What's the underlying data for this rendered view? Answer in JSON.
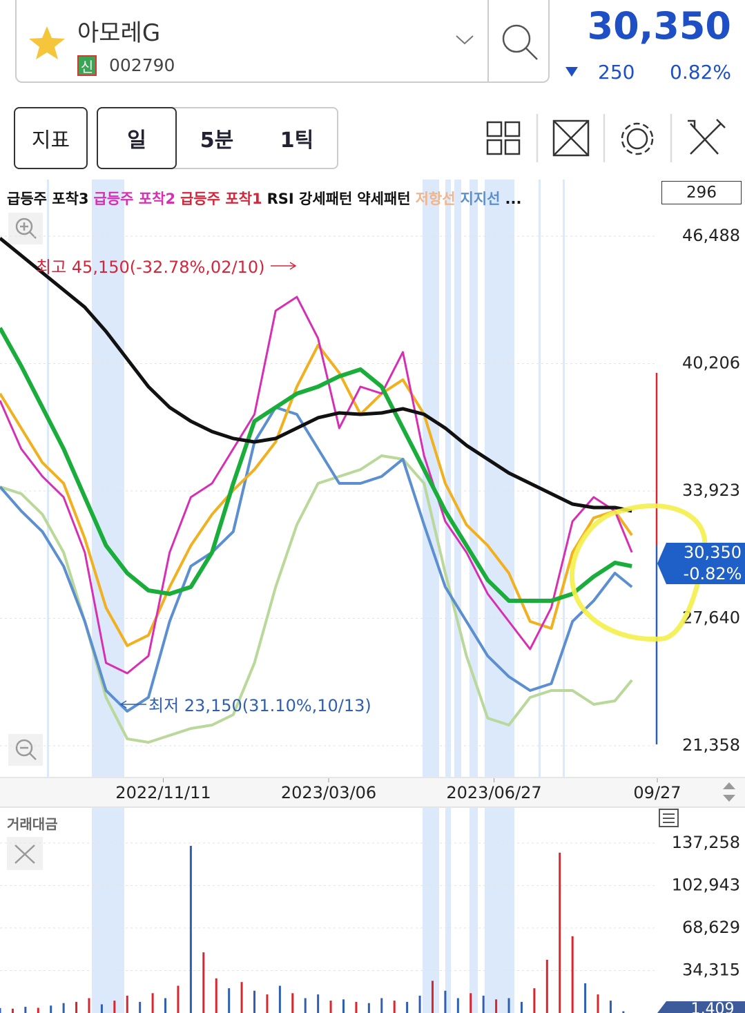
{
  "header": {
    "name": "아모레G",
    "badge": "신",
    "code": "002790",
    "price": "30,350",
    "change": "250",
    "change_pct": "0.82%"
  },
  "toolbar": {
    "buttons": [
      "지표",
      "일",
      "5분",
      "1틱"
    ]
  },
  "legend": [
    {
      "text": "급등주 포착3",
      "color": "#111111"
    },
    {
      "text": "급등주 포착2",
      "color": "#d62fb4"
    },
    {
      "text": "급등주 포착1",
      "color": "#d4263b"
    },
    {
      "text": "RSI 강세패턴",
      "color": "#111111"
    },
    {
      "text": "약세패턴",
      "color": "#111111"
    },
    {
      "text": "저항선",
      "color": "#f2b48a"
    },
    {
      "text": "지지선",
      "color": "#5b8fd0"
    },
    {
      "text": "...",
      "color": "#111111"
    }
  ],
  "counter": "296",
  "chart_data": [
    {
      "type": "line",
      "xlim": [
        0,
        310
      ],
      "xticks": [
        {
          "value": 77,
          "label": "2022/11/11"
        },
        {
          "value": 155,
          "label": "2023/03/06"
        },
        {
          "value": 233,
          "label": "2023/06/27"
        },
        {
          "value": 310,
          "label": "09/27"
        }
      ],
      "ylim": [
        19826,
        49280
      ],
      "yticks": [
        {
          "value": 21358,
          "label": "21,358"
        },
        {
          "value": 27640,
          "label": "27,640"
        },
        {
          "value": 33923,
          "label": "33,923"
        },
        {
          "value": 40206,
          "label": "40,206"
        },
        {
          "value": 46488,
          "label": "46,488"
        }
      ],
      "grid": true,
      "x": [
        0,
        10,
        20,
        30,
        40,
        50,
        60,
        70,
        80,
        90,
        100,
        110,
        120,
        130,
        140,
        150,
        160,
        170,
        180,
        190,
        200,
        210,
        220,
        230,
        240,
        250,
        260,
        270,
        280,
        290,
        298
      ],
      "series": [
        {
          "color": "#b9d89a",
          "values": [
            34128,
            33787,
            32766,
            30893,
            27488,
            23743,
            21700,
            21529,
            21869,
            22210,
            22380,
            22891,
            25445,
            29190,
            32255,
            34298,
            34639,
            34979,
            35660,
            35490,
            34298,
            29871,
            25786,
            22721,
            22380,
            23743,
            24083,
            24083,
            23402,
            23572,
            24594
          ]
        },
        {
          "color": "#5b8fd0",
          "values": [
            34128,
            32936,
            31915,
            30212,
            27488,
            24083,
            23062,
            23743,
            27488,
            30212,
            30893,
            31915,
            36341,
            38044,
            37703,
            36000,
            34298,
            34298,
            34639,
            35490,
            32255,
            29190,
            27488,
            25786,
            24764,
            24083,
            24423,
            27488,
            28510,
            29871,
            29190
          ]
        },
        {
          "color": "#f0b020",
          "values": [
            38725,
            37022,
            35320,
            34298,
            31574,
            28169,
            26296,
            26807,
            29190,
            31233,
            32766,
            33957,
            34979,
            36341,
            39065,
            41108,
            39747,
            37703,
            38725,
            39406,
            37703,
            34298,
            32255,
            31233,
            29871,
            27488,
            27147,
            30893,
            32596,
            32936,
            31744
          ]
        },
        {
          "color": "#d62fb4",
          "values": [
            38384,
            36000,
            34639,
            33617,
            30893,
            25445,
            24934,
            25786,
            30893,
            33617,
            34298,
            36000,
            37703,
            42811,
            43492,
            41449,
            37022,
            39065,
            38725,
            40768,
            35660,
            32425,
            30893,
            28850,
            27488,
            26126,
            28169,
            32425,
            33617,
            32936,
            30893
          ]
        },
        {
          "color": "#1aad3c",
          "values": [
            41959,
            40087,
            38044,
            36000,
            33617,
            31233,
            29871,
            29020,
            28850,
            29190,
            30893,
            34298,
            37363,
            38044,
            38725,
            39065,
            39576,
            39917,
            39065,
            37022,
            34979,
            32936,
            31233,
            29531,
            28510,
            28510,
            28510,
            28850,
            29701,
            30382,
            30212
          ]
        },
        {
          "color": "#111111",
          "values": [
            46386,
            45535,
            44684,
            43832,
            42981,
            41789,
            40427,
            39065,
            38044,
            37363,
            36852,
            36511,
            36341,
            36511,
            37022,
            37533,
            37771,
            37703,
            37771,
            37976,
            37703,
            37022,
            36171,
            35490,
            34809,
            34298,
            33787,
            33276,
            33106,
            33106,
            32936
          ]
        }
      ],
      "annotations": [
        {
          "text": "최고 45,150(-32.78%,02/10)",
          "color": "#d4263b"
        },
        {
          "text": "최저 23,150(31.10%,10/13)",
          "color": "#2f5fb0"
        }
      ],
      "last_price_label": "30,350",
      "last_change_label": "-0.82%"
    },
    {
      "type": "bar",
      "title": "거래대금",
      "xlim": [
        0,
        310
      ],
      "ylim": [
        0,
        162840
      ],
      "yticks": [
        {
          "value": 34315,
          "label": "34,315"
        },
        {
          "value": 68629,
          "label": "68,629"
        },
        {
          "value": 102943,
          "label": "102,943"
        },
        {
          "value": 137258,
          "label": "137,258"
        }
      ],
      "x": [
        0,
        6,
        12,
        18,
        24,
        30,
        36,
        42,
        48,
        54,
        60,
        66,
        72,
        78,
        84,
        90,
        96,
        102,
        108,
        114,
        120,
        126,
        132,
        138,
        144,
        150,
        156,
        162,
        168,
        174,
        180,
        186,
        192,
        198,
        204,
        210,
        216,
        222,
        228,
        234,
        240,
        246,
        252,
        258,
        264,
        270,
        276,
        282,
        288,
        294
      ],
      "values": [
        4000,
        3500,
        5000,
        4200,
        6000,
        8000,
        9000,
        12000,
        7000,
        10000,
        14000,
        9000,
        16000,
        12000,
        22000,
        135000,
        49000,
        28000,
        20000,
        25000,
        18000,
        15000,
        22000,
        16000,
        12000,
        15000,
        10000,
        11000,
        9000,
        8000,
        12000,
        10000,
        9000,
        14000,
        26000,
        18000,
        12000,
        16000,
        14000,
        11000,
        12000,
        9000,
        20000,
        43000,
        129500,
        62000,
        24000,
        15000,
        10000,
        1409
      ],
      "colors": [
        "#2f5fb0",
        "#d7262f",
        "#2f5fb0",
        "#d7262f",
        "#2f5fb0",
        "#2f5fb0",
        "#d7262f",
        "#d7262f",
        "#2f5fb0",
        "#d7262f",
        "#d7262f",
        "#2f5fb0",
        "#d7262f",
        "#2f5fb0",
        "#d7262f",
        "#2f5fb0",
        "#d7262f",
        "#d7262f",
        "#2f5fb0",
        "#d7262f",
        "#2f5fb0",
        "#d7262f",
        "#2f5fb0",
        "#d7262f",
        "#2f5fb0",
        "#2f5fb0",
        "#d7262f",
        "#2f5fb0",
        "#d7262f",
        "#2f5fb0",
        "#2f5fb0",
        "#d7262f",
        "#2f5fb0",
        "#2f5fb0",
        "#d7262f",
        "#2f5fb0",
        "#2f5fb0",
        "#d7262f",
        "#2f5fb0",
        "#d7262f",
        "#2f5fb0",
        "#2f5fb0",
        "#d7262f",
        "#d7262f",
        "#d7262f",
        "#d7262f",
        "#2f5fb0",
        "#d7262f",
        "#2f5fb0",
        "#2f5fb0"
      ],
      "last_label": "1,409"
    }
  ]
}
